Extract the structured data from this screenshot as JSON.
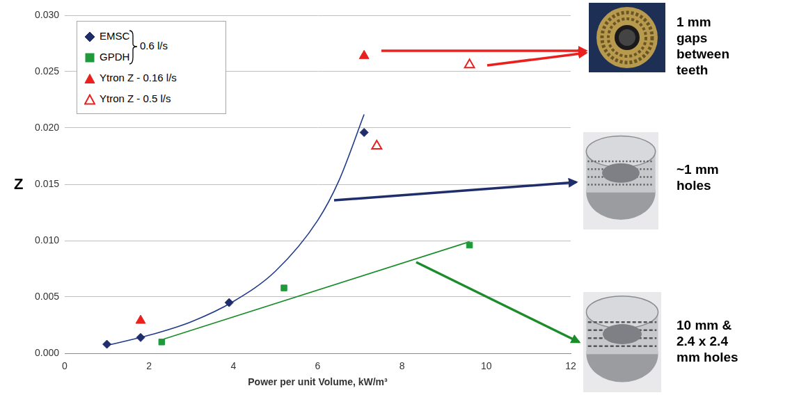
{
  "chart_data": {
    "type": "scatter",
    "x_label": "Power per unit Volume, kW/m³",
    "y_label": "Z",
    "xlim": [
      0,
      12
    ],
    "xticks": [
      0,
      2,
      4,
      6,
      8,
      10,
      12
    ],
    "ylim": [
      0,
      0.03
    ],
    "yticks": [
      {
        "value": 0,
        "label": "0.000"
      },
      {
        "value": 0.005,
        "label": "0.005"
      },
      {
        "value": 0.01,
        "label": "0.010"
      },
      {
        "value": 0.015,
        "label": "0.015"
      },
      {
        "value": 0.02,
        "label": "0.020"
      },
      {
        "value": 0.025,
        "label": "0.025"
      },
      {
        "value": 0.03,
        "label": "0.030"
      }
    ],
    "grid": "y",
    "legend": "upper left",
    "legend_group": {
      "series": [
        "EMSC",
        "GPDH"
      ],
      "label": "0.6 l/s"
    },
    "series": [
      {
        "name": "EMSC",
        "color": "#1f2d6b",
        "marker": "diamond",
        "x": [
          1.0,
          1.8,
          3.9,
          7.1
        ],
        "values": [
          0.0008,
          0.0014,
          0.0045,
          0.0196
        ]
      },
      {
        "name": "GPDH",
        "color": "#1f9a3a",
        "marker": "square",
        "x": [
          2.3,
          5.2,
          9.6
        ],
        "values": [
          0.001,
          0.0058,
          0.0096
        ]
      },
      {
        "name": "Ytron Z - 0.16 l/s",
        "color": "#e8211f",
        "marker": "triangle",
        "x": [
          1.8,
          7.1
        ],
        "values": [
          0.0029,
          0.0264
        ]
      },
      {
        "name": "Ytron Z - 0.5 l/s",
        "color": "#e8211f",
        "marker": "triangle-open",
        "x": [
          9.6,
          7.4
        ],
        "values": [
          0.0256,
          0.0184
        ]
      }
    ],
    "trendlines": [
      {
        "series": "EMSC",
        "color": "#1f3a8a",
        "line_style": "curve",
        "x": [
          1.0,
          2.0,
          3.0,
          4.0,
          5.0,
          6.0,
          6.5,
          7.1
        ],
        "values": [
          0.0007,
          0.0016,
          0.0028,
          0.0046,
          0.0073,
          0.0118,
          0.0153,
          0.0212
        ]
      },
      {
        "series": "GPDH",
        "color": "#1a8c2a",
        "line_style": "straight",
        "x": [
          2.3,
          9.6
        ],
        "values": [
          0.0012,
          0.0099
        ]
      }
    ],
    "annotations": [
      {
        "text": "1 mm gaps between teeth",
        "color": "#e8211f"
      },
      {
        "text": "~1 mm holes",
        "color": "#1f2d6b"
      },
      {
        "text": "10 mm & 2.4 x 2.4 mm holes",
        "color": "#1a8c2a"
      }
    ]
  }
}
